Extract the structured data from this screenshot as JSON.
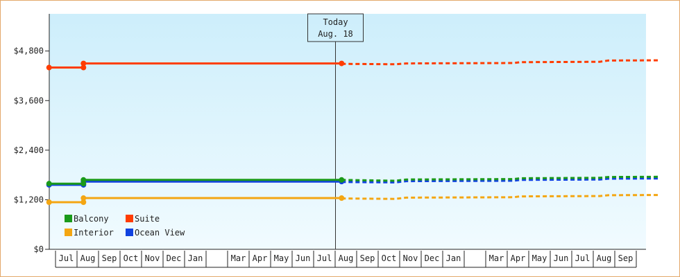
{
  "chart_data": {
    "type": "line",
    "title": "",
    "xlabel": "",
    "ylabel": "",
    "ylim": [
      0,
      5700
    ],
    "y_ticks": [
      {
        "value": 0,
        "label": "$0"
      },
      {
        "value": 1200,
        "label": "$1,200"
      },
      {
        "value": 2400,
        "label": "$2,400"
      },
      {
        "value": 3600,
        "label": "$3,600"
      },
      {
        "value": 4800,
        "label": "$4,800"
      }
    ],
    "x_months": [
      "Jul",
      "Aug",
      "Sep",
      "Oct",
      "Nov",
      "Dec",
      "Jan",
      "",
      "Mar",
      "Apr",
      "May",
      "Jun",
      "Jul",
      "Aug",
      "Sep",
      "Oct",
      "Nov",
      "Dec",
      "Jan",
      "",
      "Mar",
      "Apr",
      "May",
      "Jun",
      "Jul",
      "Aug",
      "Sep"
    ],
    "today": {
      "line1": "Today",
      "line2": "Aug. 18",
      "month_index": 13
    },
    "grid": false,
    "legend_position": "bottom-left",
    "series": [
      {
        "name": "Balcony",
        "color": "#1a9a1a",
        "history": [
          [
            -0.3,
            1590
          ],
          [
            1.3,
            1590
          ],
          [
            1.3,
            1680
          ],
          [
            13.3,
            1680
          ]
        ],
        "markers": [
          [
            -0.3,
            1590
          ],
          [
            1.3,
            1590
          ],
          [
            1.3,
            1680
          ],
          [
            13.3,
            1680
          ]
        ],
        "forecast": [
          [
            13.3,
            1680
          ],
          [
            15.8,
            1660
          ],
          [
            16.3,
            1690
          ],
          [
            21.3,
            1700
          ],
          [
            21.6,
            1720
          ],
          [
            25.3,
            1730
          ],
          [
            25.7,
            1750
          ],
          [
            28.0,
            1755
          ]
        ]
      },
      {
        "name": "Suite",
        "color": "#ff3c00",
        "history": [
          [
            -0.3,
            4400
          ],
          [
            1.3,
            4400
          ],
          [
            1.3,
            4500
          ],
          [
            13.3,
            4500
          ]
        ],
        "markers": [
          [
            -0.3,
            4400
          ],
          [
            1.3,
            4400
          ],
          [
            1.3,
            4500
          ],
          [
            13.3,
            4500
          ]
        ],
        "forecast": [
          [
            13.3,
            4490
          ],
          [
            15.8,
            4480
          ],
          [
            16.3,
            4500
          ],
          [
            21.3,
            4510
          ],
          [
            21.6,
            4530
          ],
          [
            25.3,
            4540
          ],
          [
            25.7,
            4570
          ],
          [
            28.0,
            4575
          ]
        ]
      },
      {
        "name": "Interior",
        "color": "#f4a612",
        "history": [
          [
            -0.3,
            1140
          ],
          [
            1.3,
            1140
          ],
          [
            1.3,
            1240
          ],
          [
            13.3,
            1240
          ]
        ],
        "markers": [
          [
            -0.3,
            1140
          ],
          [
            1.3,
            1140
          ],
          [
            1.3,
            1240
          ],
          [
            13.3,
            1240
          ]
        ],
        "forecast": [
          [
            13.3,
            1230
          ],
          [
            15.8,
            1220
          ],
          [
            16.3,
            1250
          ],
          [
            21.3,
            1260
          ],
          [
            21.6,
            1280
          ],
          [
            25.3,
            1290
          ],
          [
            25.7,
            1310
          ],
          [
            28.0,
            1315
          ]
        ]
      },
      {
        "name": "Ocean View",
        "color": "#1042e0",
        "history": [
          [
            -0.3,
            1560
          ],
          [
            1.3,
            1560
          ],
          [
            1.3,
            1640
          ],
          [
            13.3,
            1640
          ]
        ],
        "markers": [
          [
            -0.3,
            1560
          ],
          [
            1.3,
            1560
          ],
          [
            1.3,
            1640
          ],
          [
            13.3,
            1640
          ]
        ],
        "forecast": [
          [
            13.3,
            1630
          ],
          [
            15.8,
            1620
          ],
          [
            16.3,
            1650
          ],
          [
            21.3,
            1660
          ],
          [
            21.6,
            1680
          ],
          [
            25.3,
            1690
          ],
          [
            25.7,
            1710
          ],
          [
            28.0,
            1715
          ]
        ]
      }
    ],
    "legend": [
      {
        "label": "Balcony",
        "color": "#1a9a1a"
      },
      {
        "label": "Suite",
        "color": "#ff3c00"
      },
      {
        "label": "Interior",
        "color": "#f4a612"
      },
      {
        "label": "Ocean View",
        "color": "#1042e0"
      }
    ],
    "colors": {
      "bg_top": "#cdeefb",
      "bg_bottom": "#f1fbff",
      "frame": "#e3a86a"
    }
  }
}
